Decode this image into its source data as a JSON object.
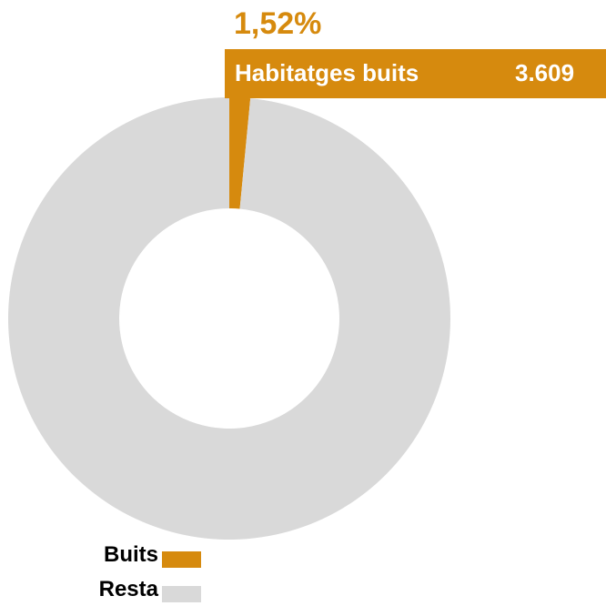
{
  "chart_data": {
    "type": "pie",
    "variant": "donut",
    "slices": [
      {
        "label": "Buits",
        "percent": 1.52,
        "color": "#D68A0E"
      },
      {
        "label": "Resta",
        "percent": 98.48,
        "color": "#D9D9D9"
      }
    ],
    "data_label": "1,52%",
    "callout": {
      "name": "Habitatges buits",
      "value": "3.609"
    },
    "legend": {
      "position": "bottom-left",
      "items": [
        {
          "label": "Buits",
          "color": "#D68A0E"
        },
        {
          "label": "Resta",
          "color": "#D9D9D9"
        }
      ]
    }
  }
}
